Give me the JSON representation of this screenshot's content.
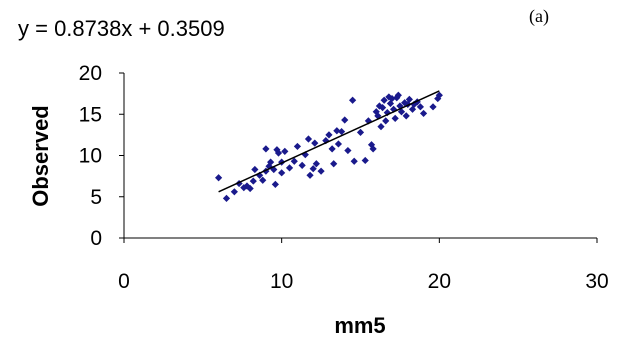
{
  "chart_data": {
    "type": "scatter",
    "annotation": "y = 0.8738x + 0.3509",
    "panel_label": "(a)",
    "xlabel": "mm5",
    "ylabel": "Observed",
    "xlim": [
      0,
      30
    ],
    "ylim": [
      0,
      20
    ],
    "xticks": [
      "0",
      "10",
      "20",
      "30"
    ],
    "yticks": [
      "0",
      "5",
      "10",
      "15",
      "20"
    ],
    "marker_color": "#1a1a8c",
    "trendline": {
      "slope": 0.8738,
      "intercept": 0.3509,
      "x_range": [
        6,
        20
      ]
    },
    "points": [
      [
        6.0,
        7.3
      ],
      [
        6.5,
        4.8
      ],
      [
        7.0,
        5.6
      ],
      [
        7.3,
        6.6
      ],
      [
        7.6,
        6.1
      ],
      [
        7.8,
        6.3
      ],
      [
        8.0,
        6.0
      ],
      [
        8.2,
        6.9
      ],
      [
        8.3,
        8.3
      ],
      [
        8.6,
        7.6
      ],
      [
        8.8,
        7.0
      ],
      [
        9.0,
        8.1
      ],
      [
        9.0,
        10.8
      ],
      [
        9.2,
        8.7
      ],
      [
        9.3,
        9.2
      ],
      [
        9.5,
        8.3
      ],
      [
        9.6,
        6.5
      ],
      [
        9.7,
        10.7
      ],
      [
        9.8,
        10.3
      ],
      [
        10.0,
        9.2
      ],
      [
        10.0,
        7.9
      ],
      [
        10.2,
        10.5
      ],
      [
        10.5,
        8.5
      ],
      [
        10.8,
        9.3
      ],
      [
        11.0,
        11.1
      ],
      [
        11.3,
        8.8
      ],
      [
        11.5,
        10.1
      ],
      [
        11.7,
        12.0
      ],
      [
        11.8,
        7.6
      ],
      [
        12.0,
        8.4
      ],
      [
        12.1,
        11.5
      ],
      [
        12.2,
        9.0
      ],
      [
        12.5,
        8.1
      ],
      [
        12.8,
        11.8
      ],
      [
        13.0,
        12.5
      ],
      [
        13.2,
        10.8
      ],
      [
        13.3,
        9.0
      ],
      [
        13.5,
        13.0
      ],
      [
        13.6,
        11.4
      ],
      [
        13.8,
        12.9
      ],
      [
        14.0,
        14.3
      ],
      [
        14.2,
        10.6
      ],
      [
        14.5,
        16.7
      ],
      [
        14.6,
        9.3
      ],
      [
        15.0,
        12.8
      ],
      [
        15.3,
        9.4
      ],
      [
        15.5,
        14.2
      ],
      [
        15.7,
        11.3
      ],
      [
        15.8,
        10.8
      ],
      [
        16.0,
        15.3
      ],
      [
        16.1,
        14.8
      ],
      [
        16.2,
        16.0
      ],
      [
        16.3,
        13.5
      ],
      [
        16.4,
        15.8
      ],
      [
        16.5,
        16.7
      ],
      [
        16.6,
        14.2
      ],
      [
        16.7,
        15.2
      ],
      [
        16.8,
        17.1
      ],
      [
        16.9,
        16.3
      ],
      [
        17.0,
        16.9
      ],
      [
        17.1,
        15.6
      ],
      [
        17.2,
        14.5
      ],
      [
        17.3,
        17.0
      ],
      [
        17.4,
        17.3
      ],
      [
        17.5,
        16.0
      ],
      [
        17.6,
        15.3
      ],
      [
        17.8,
        16.4
      ],
      [
        17.9,
        14.8
      ],
      [
        18.0,
        16.2
      ],
      [
        18.1,
        16.8
      ],
      [
        18.3,
        15.6
      ],
      [
        18.4,
        16.2
      ],
      [
        18.6,
        16.5
      ],
      [
        18.8,
        15.9
      ],
      [
        19.0,
        15.1
      ],
      [
        19.6,
        15.9
      ],
      [
        19.9,
        16.9
      ],
      [
        20.0,
        17.3
      ]
    ]
  }
}
